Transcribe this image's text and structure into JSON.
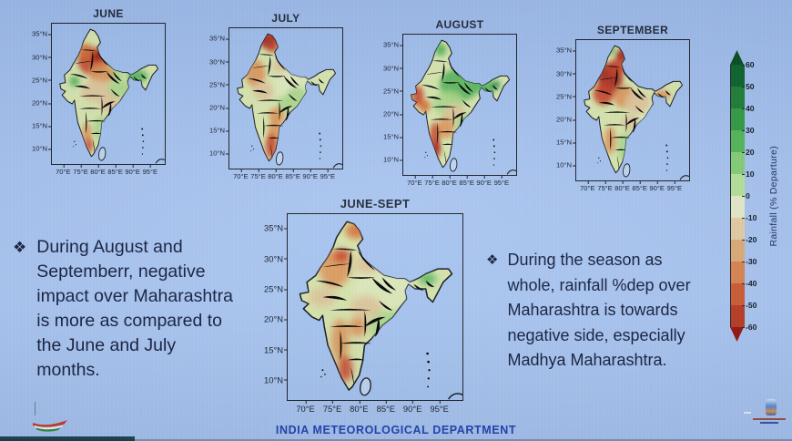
{
  "slide": {
    "background_color": "#a3bfea",
    "footer_text": "INDIA METEOROLOGICAL DEPARTMENT",
    "footer_color": "#1d3faa"
  },
  "panels": [
    {
      "id": "june",
      "title": "JUNE"
    },
    {
      "id": "july",
      "title": "JULY"
    },
    {
      "id": "august",
      "title": "AUGUST"
    },
    {
      "id": "september",
      "title": "SEPTEMBER"
    },
    {
      "id": "june_sept",
      "title": "JUNE-SEPT"
    }
  ],
  "axes": {
    "lat_ticks": [
      "35°N",
      "30°N",
      "25°N",
      "20°N",
      "15°N",
      "10°N"
    ],
    "lon_ticks": [
      "70°E",
      "75°E",
      "80°E",
      "85°E",
      "90°E",
      "95°E"
    ]
  },
  "colorbar": {
    "label": "Rainfall (% Departure)",
    "ticks": [
      "60",
      "50",
      "40",
      "30",
      "20",
      "10",
      "0",
      "-10",
      "-20",
      "-30",
      "-40",
      "-50",
      "-60"
    ],
    "arrow_top_color": "#064a1e",
    "arrow_bottom_color": "#93140f",
    "segment_colors": [
      "#0a6128",
      "#1b7c33",
      "#2f9a41",
      "#52b455",
      "#83cc73",
      "#b5df96",
      "#e4e9c7",
      "#e3cda0",
      "#dcaa76",
      "#d9834e",
      "#cd5a31",
      "#b93a20"
    ]
  },
  "bullets": {
    "left": {
      "marker": "❖",
      "lines": [
        "During August and",
        "Septemberr, negative",
        "impact over Maharashtra",
        "is more as compared to",
        "the June and July",
        "months."
      ]
    },
    "right": {
      "marker": "❖",
      "lines": [
        "During the season as",
        "whole, rainfall %dep over",
        "Maharashtra is towards",
        "negative side, especially",
        "Madhya Maharashtra."
      ]
    }
  }
}
